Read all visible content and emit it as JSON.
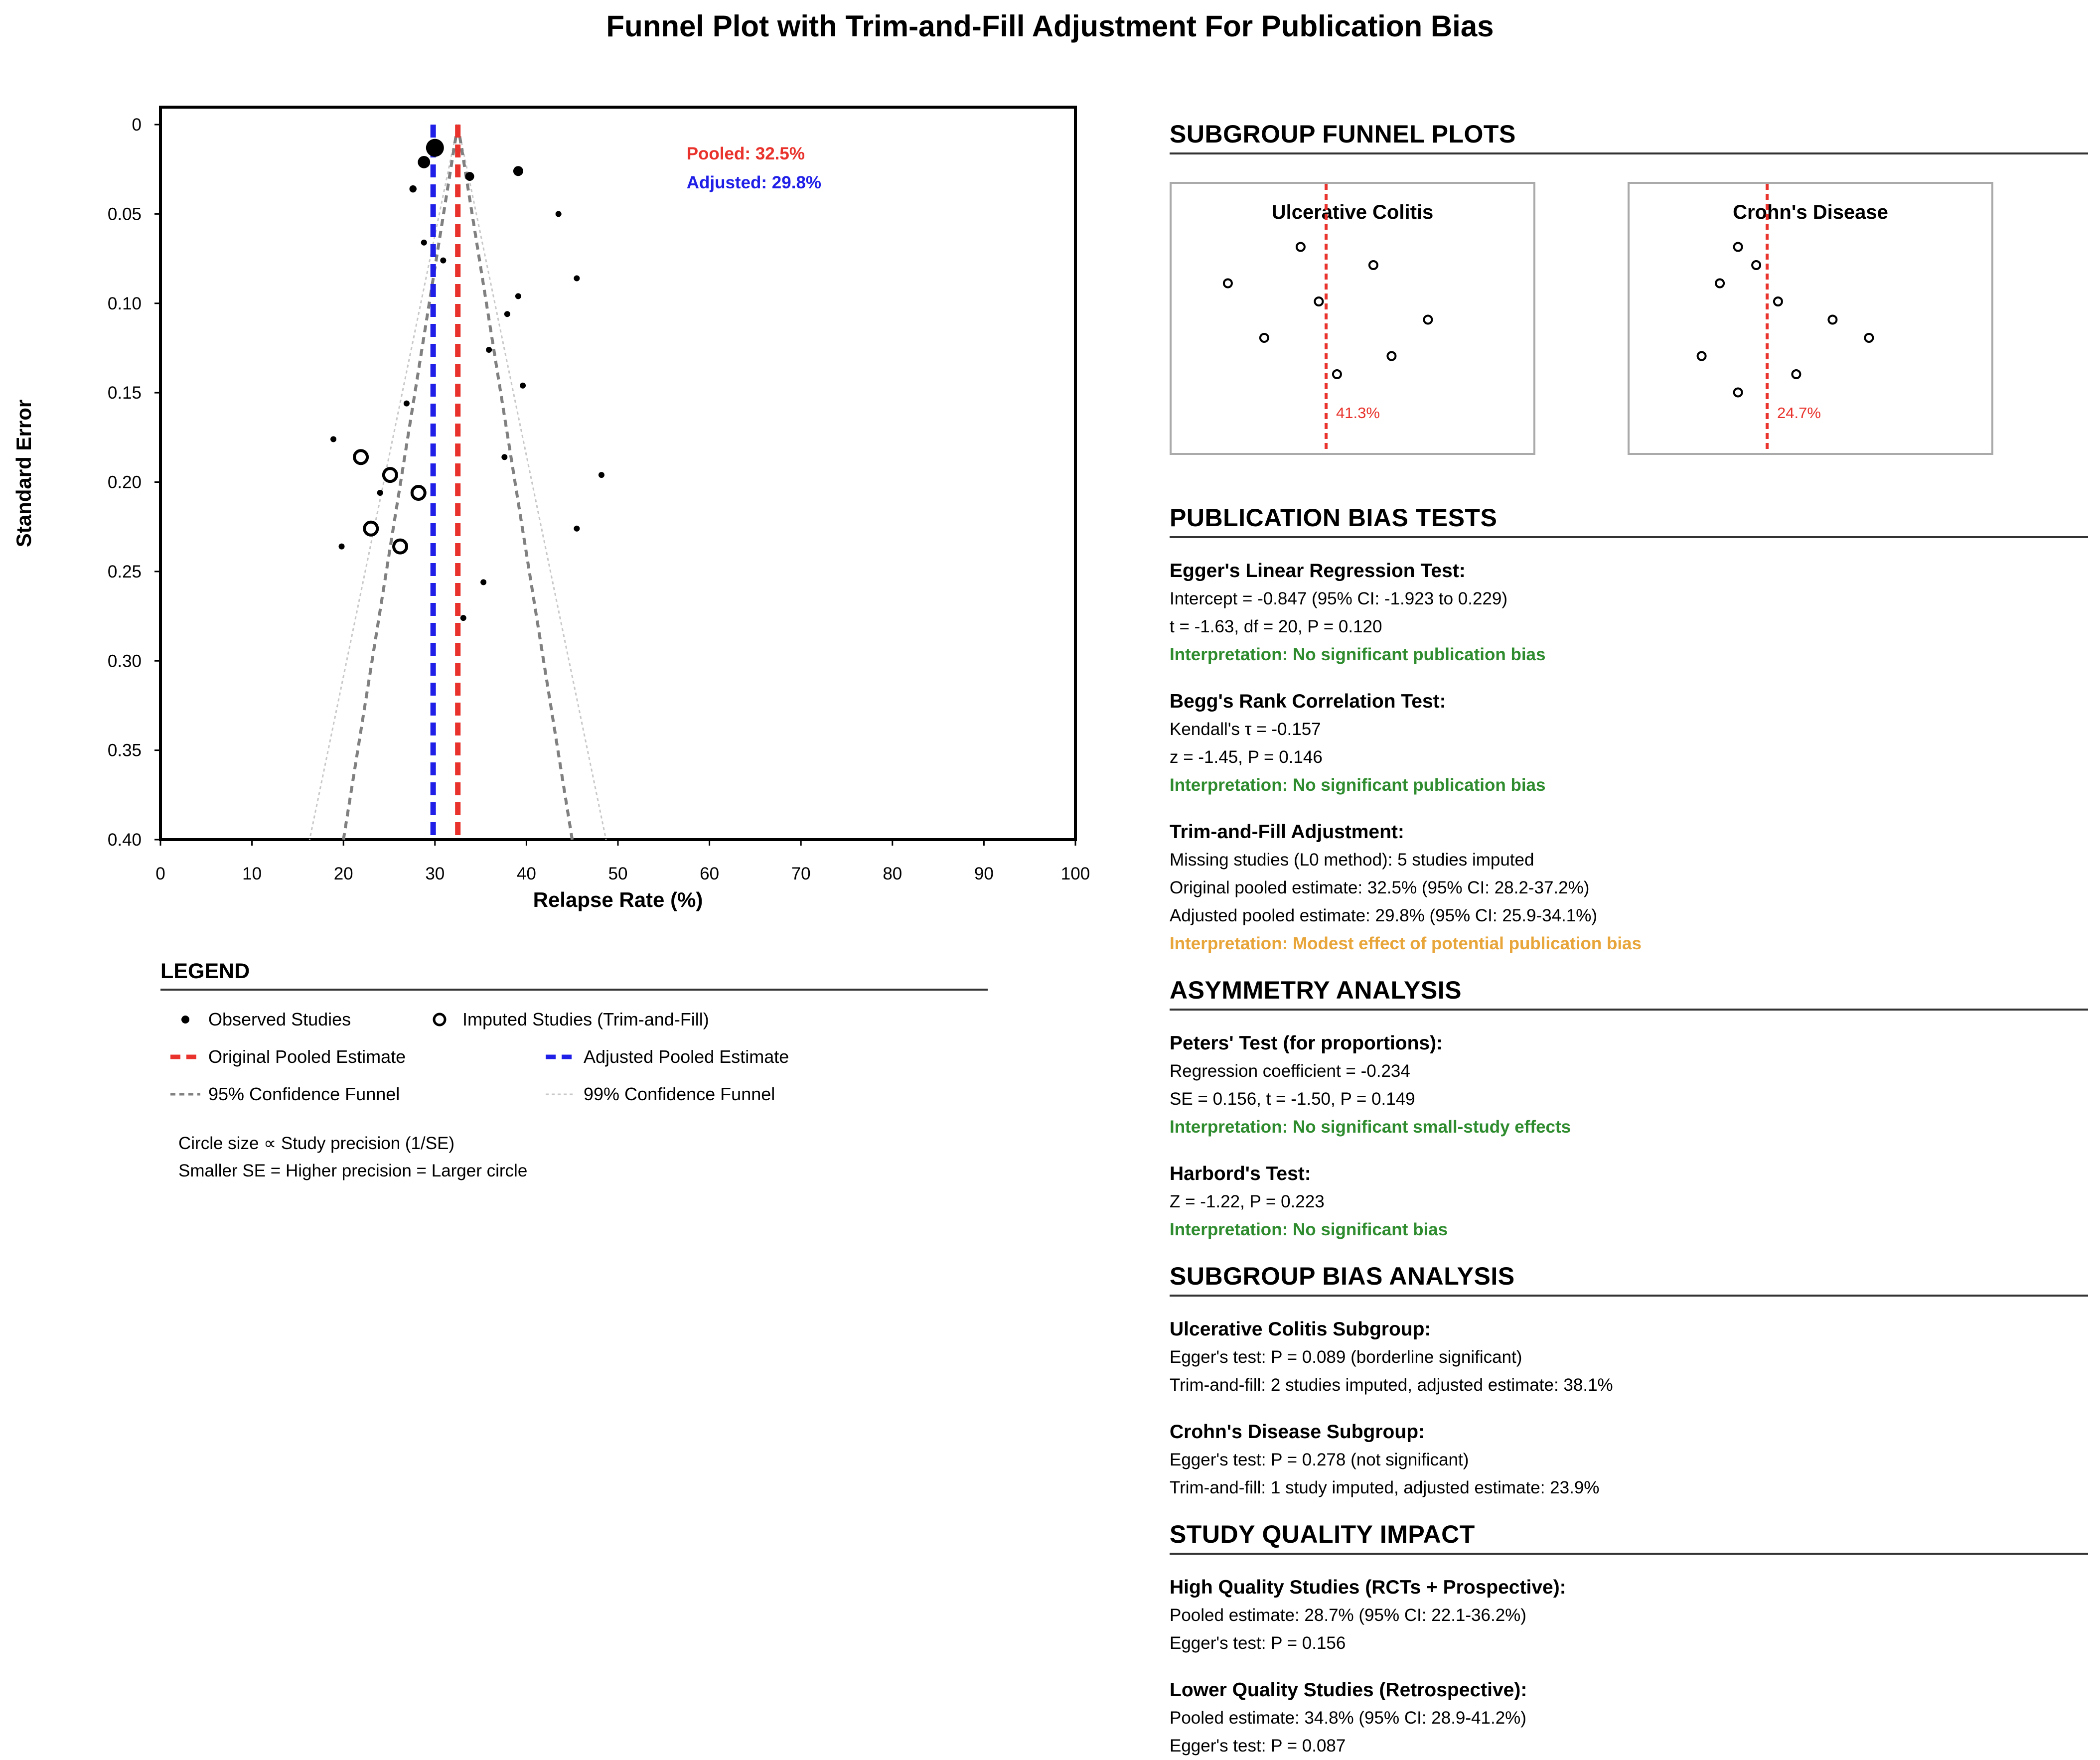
{
  "title": "Funnel Plot with Trim-and-Fill Adjustment For Publication Bias",
  "chart_data": {
    "type": "scatter",
    "xlabel": "Relapse Rate (%)",
    "ylabel": "Standard Error",
    "xlim": [
      0,
      100
    ],
    "ylim": [
      0,
      0.4
    ],
    "y_inverted": true,
    "x_ticks": [
      "0",
      "10",
      "20",
      "30",
      "40",
      "50",
      "60",
      "70",
      "80",
      "90",
      "100"
    ],
    "y_ticks": [
      "0",
      "0.05",
      "0.10",
      "0.15",
      "0.20",
      "0.25",
      "0.30",
      "0.35",
      "0.40"
    ],
    "pooled_estimate": 32.5,
    "adjusted_estimate": 29.8,
    "annotation_pooled": "Pooled: 32.5%",
    "annotation_adjusted": "Adjusted: 29.8%",
    "funnel_95": {
      "apex": [
        32.5,
        0.0
      ],
      "base_left": [
        20.0,
        0.4
      ],
      "base_right": [
        45.0,
        0.4
      ]
    },
    "funnel_99": {
      "apex": [
        32.5,
        0.0
      ],
      "base_left": [
        16.3,
        0.4
      ],
      "base_right": [
        48.7,
        0.4
      ]
    },
    "observed_studies": [
      {
        "x": 30.0,
        "se": 0.013
      },
      {
        "x": 28.8,
        "se": 0.021
      },
      {
        "x": 33.8,
        "se": 0.029
      },
      {
        "x": 39.1,
        "se": 0.026
      },
      {
        "x": 27.6,
        "se": 0.036
      },
      {
        "x": 43.5,
        "se": 0.05
      },
      {
        "x": 28.8,
        "se": 0.066
      },
      {
        "x": 30.9,
        "se": 0.076
      },
      {
        "x": 45.5,
        "se": 0.086
      },
      {
        "x": 39.1,
        "se": 0.096
      },
      {
        "x": 37.9,
        "se": 0.106
      },
      {
        "x": 35.9,
        "se": 0.126
      },
      {
        "x": 39.6,
        "se": 0.146
      },
      {
        "x": 26.9,
        "se": 0.156
      },
      {
        "x": 18.9,
        "se": 0.176
      },
      {
        "x": 37.6,
        "se": 0.186
      },
      {
        "x": 48.2,
        "se": 0.196
      },
      {
        "x": 24.0,
        "se": 0.206
      },
      {
        "x": 45.5,
        "se": 0.226
      },
      {
        "x": 19.8,
        "se": 0.236
      },
      {
        "x": 35.3,
        "se": 0.256
      },
      {
        "x": 33.1,
        "se": 0.276
      }
    ],
    "imputed_studies": [
      {
        "x": 21.9,
        "se": 0.186
      },
      {
        "x": 25.1,
        "se": 0.196
      },
      {
        "x": 28.2,
        "se": 0.206
      },
      {
        "x": 23.0,
        "se": 0.226
      },
      {
        "x": 26.2,
        "se": 0.236
      }
    ]
  },
  "legend": {
    "title": "LEGEND",
    "observed": "Observed Studies",
    "imputed": "Imputed Studies (Trim-and-Fill)",
    "original": "Original Pooled Estimate",
    "adjusted": "Adjusted Pooled Estimate",
    "funnel95": "95% Confidence Funnel",
    "funnel99": "99% Confidence Funnel",
    "note1": "Circle size ∝ Study precision (1/SE)",
    "note2": "Smaller SE = Higher precision = Larger circle"
  },
  "subgroup_plots": {
    "heading": "SUBGROUP FUNNEL PLOTS",
    "uc": {
      "title": "Ulcerative Colitis",
      "estimate_label": "41.3%",
      "points": [
        [
          -7,
          1
        ],
        [
          13,
          2
        ],
        [
          -27,
          3
        ],
        [
          -2,
          4
        ],
        [
          28,
          5
        ],
        [
          -17,
          6
        ],
        [
          18,
          7
        ],
        [
          3,
          8
        ]
      ]
    },
    "cd": {
      "title": "Crohn's Disease",
      "estimate_label": "24.7%",
      "points": [
        [
          -8,
          1
        ],
        [
          -3,
          2
        ],
        [
          -13,
          3
        ],
        [
          3,
          4
        ],
        [
          18,
          5
        ],
        [
          28,
          6
        ],
        [
          -18,
          7
        ],
        [
          8,
          8
        ],
        [
          -8,
          9
        ]
      ]
    }
  },
  "pub_bias": {
    "heading": "PUBLICATION BIAS TESTS",
    "egger": {
      "title": "Egger's Linear Regression Test:",
      "l1": "Intercept = -0.847 (95% CI: -1.923 to 0.229)",
      "l2": "t = -1.63, df = 20, P = 0.120",
      "interp": "Interpretation: No significant publication bias"
    },
    "begg": {
      "title": "Begg's Rank Correlation Test:",
      "l1": "Kendall's τ = -0.157",
      "l2": "z = -1.45, P = 0.146",
      "interp": "Interpretation: No significant publication bias"
    },
    "trimfill": {
      "title": "Trim-and-Fill Adjustment:",
      "l1": "Missing studies (L0 method): 5 studies imputed",
      "l2": "Original pooled estimate: 32.5% (95% CI: 28.2-37.2%)",
      "l3": "Adjusted pooled estimate: 29.8% (95% CI: 25.9-34.1%)",
      "interp": "Interpretation: Modest effect of potential publication bias"
    }
  },
  "asymmetry": {
    "heading": "ASYMMETRY ANALYSIS",
    "peters": {
      "title": "Peters' Test (for proportions):",
      "l1": "Regression coefficient = -0.234",
      "l2": "SE = 0.156, t = -1.50, P = 0.149",
      "interp": "Interpretation: No significant small-study effects"
    },
    "harbord": {
      "title": "Harbord's Test:",
      "l1": "Z = -1.22, P = 0.223",
      "interp": "Interpretation: No significant bias"
    }
  },
  "subgroup_bias": {
    "heading": "SUBGROUP BIAS ANALYSIS",
    "uc": {
      "title": "Ulcerative Colitis Subgroup:",
      "l1": "Egger's test: P = 0.089 (borderline significant)",
      "l2": "Trim-and-fill: 2 studies imputed, adjusted estimate: 38.1%"
    },
    "cd": {
      "title": "Crohn's Disease Subgroup:",
      "l1": "Egger's test: P = 0.278 (not significant)",
      "l2": "Trim-and-fill: 1 study imputed, adjusted estimate: 23.9%"
    }
  },
  "quality": {
    "heading": "STUDY QUALITY IMPACT",
    "high": {
      "title": "High Quality Studies (RCTs + Prospective):",
      "l1": "Pooled estimate: 28.7% (95% CI: 22.1-36.2%)",
      "l2": "Egger's test: P = 0.156"
    },
    "low": {
      "title": "Lower Quality Studies (Retrospective):",
      "l1": "Pooled estimate: 34.8% (95% CI: 28.9-41.2%)",
      "l2": "Egger's test: P = 0.087"
    }
  },
  "colors": {
    "pooled": "#e8322b",
    "adjusted": "#1f1fe8",
    "funnel95": "#808080",
    "funnel99": "#c8c8c8",
    "green": "#2e8b2e",
    "orange": "#e8a53a"
  }
}
